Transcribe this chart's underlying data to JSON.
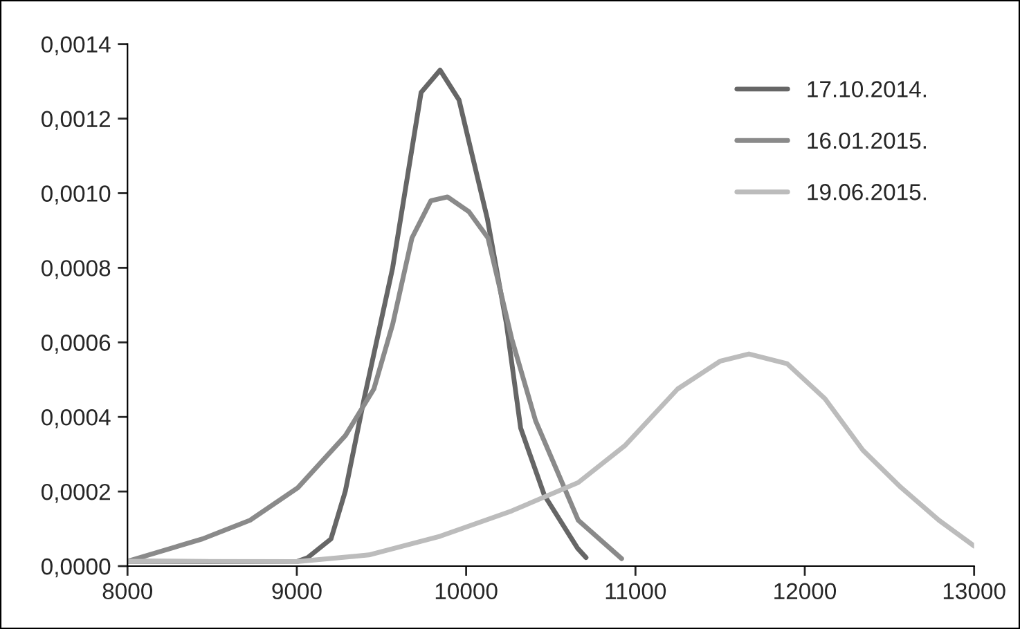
{
  "chart_data": {
    "type": "line",
    "xlim": [
      8000,
      13000
    ],
    "xticks": [
      8000,
      9000,
      10000,
      11000,
      12000,
      13000
    ],
    "ylim": [
      0,
      0.0014
    ],
    "yticks": [
      {
        "value": 0,
        "label": "0,0000"
      },
      {
        "value": 0.0002,
        "label": "0,0002"
      },
      {
        "value": 0.0004,
        "label": "0,0004"
      },
      {
        "value": 0.0006,
        "label": "0,0006"
      },
      {
        "value": 0.0008,
        "label": "0,0008"
      },
      {
        "value": 0.001,
        "label": "0,0010"
      },
      {
        "value": 0.0012,
        "label": "0,0012"
      },
      {
        "value": 0.0014,
        "label": "0,0014"
      }
    ],
    "grid": false,
    "legend": "top right",
    "marker": "none",
    "line_style": "solid",
    "series": [
      {
        "name": "17.10.2014.",
        "color": "#666666",
        "x": [
          8000,
          8500,
          9000,
          9062,
          9202,
          9286,
          9398,
          9566,
          9734,
          9846,
          9958,
          10126,
          10238,
          10322,
          10462,
          10658,
          10708
        ],
        "values": [
          1.3e-05,
          1.2e-05,
          1.2e-05,
          2.2e-05,
          7.3e-05,
          0.0002,
          0.00045,
          0.0008,
          0.00127,
          0.00133,
          0.00125,
          0.00093,
          0.00065,
          0.00037,
          0.00019,
          4.8e-05,
          2.3e-05
        ]
      },
      {
        "name": "16.01.2015.",
        "color": "#8a8a8a",
        "x": [
          8000,
          8443,
          8724,
          9006,
          9287,
          9455,
          9567,
          9680,
          9792,
          9890,
          10017,
          10129,
          10269,
          10410,
          10662,
          10918
        ],
        "values": [
          1.3e-05,
          7.3e-05,
          0.000123,
          0.00021,
          0.00035,
          0.000475,
          0.00065,
          0.00088,
          0.00098,
          0.00099,
          0.00095,
          0.00088,
          0.00061,
          0.00039,
          0.000123,
          2e-05
        ]
      },
      {
        "name": "19.06.2015.",
        "color": "#bcbcbc",
        "x": [
          8000,
          9000,
          9426,
          9846,
          10269,
          10662,
          10940,
          11249,
          11502,
          11670,
          11895,
          12119,
          12343,
          12568,
          12792,
          13000
        ],
        "values": [
          1.3e-05,
          1.2e-05,
          3e-05,
          8e-05,
          0.000148,
          0.000224,
          0.000324,
          0.000475,
          0.00055,
          0.000569,
          0.000543,
          0.000449,
          0.000311,
          0.000211,
          0.000123,
          5.4e-05
        ]
      }
    ]
  }
}
